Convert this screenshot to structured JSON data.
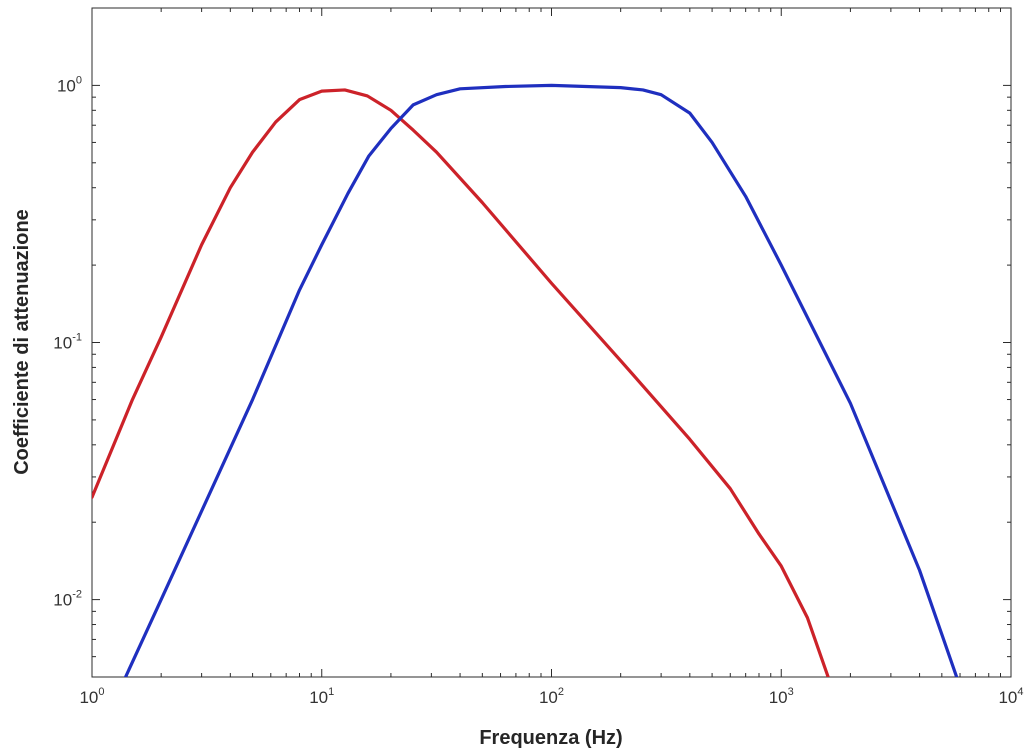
{
  "chart_data": {
    "type": "line",
    "title": "",
    "xlabel": "Frequenza (Hz)",
    "ylabel": "Coefficiente di attenuazione",
    "xscale": "log",
    "yscale": "log",
    "xlim": [
      1,
      10000
    ],
    "ylim": [
      0.005,
      2
    ],
    "grid": false,
    "legend": "none",
    "x_ticks": [
      {
        "value": 1,
        "base": "10",
        "exp": "0"
      },
      {
        "value": 10,
        "base": "10",
        "exp": "1"
      },
      {
        "value": 100,
        "base": "10",
        "exp": "2"
      },
      {
        "value": 1000,
        "base": "10",
        "exp": "3"
      },
      {
        "value": 10000,
        "base": "10",
        "exp": "4"
      }
    ],
    "y_ticks": [
      {
        "value": 0.01,
        "base": "10",
        "exp": "-2"
      },
      {
        "value": 0.1,
        "base": "10",
        "exp": "-1"
      },
      {
        "value": 1,
        "base": "10",
        "exp": "0"
      }
    ],
    "series": [
      {
        "color": "#cc2229",
        "points": [
          [
            1,
            0.025
          ],
          [
            1.5,
            0.06
          ],
          [
            2,
            0.105
          ],
          [
            3,
            0.24
          ],
          [
            4,
            0.4
          ],
          [
            5,
            0.55
          ],
          [
            6.3,
            0.72
          ],
          [
            8,
            0.88
          ],
          [
            10,
            0.95
          ],
          [
            12.6,
            0.96
          ],
          [
            15.8,
            0.91
          ],
          [
            20,
            0.8
          ],
          [
            25,
            0.67
          ],
          [
            31.6,
            0.55
          ],
          [
            50,
            0.35
          ],
          [
            100,
            0.17
          ],
          [
            200,
            0.085
          ],
          [
            400,
            0.042
          ],
          [
            600,
            0.027
          ],
          [
            800,
            0.018
          ],
          [
            1000,
            0.0135
          ],
          [
            1300,
            0.0085
          ],
          [
            1600,
            0.005
          ]
        ]
      },
      {
        "color": "#1f2fbf",
        "points": [
          [
            1.4,
            0.005
          ],
          [
            2,
            0.01
          ],
          [
            5,
            0.06
          ],
          [
            8,
            0.16
          ],
          [
            10,
            0.24
          ],
          [
            13,
            0.38
          ],
          [
            16,
            0.53
          ],
          [
            20,
            0.68
          ],
          [
            25,
            0.84
          ],
          [
            31.6,
            0.92
          ],
          [
            40,
            0.97
          ],
          [
            63,
            0.99
          ],
          [
            100,
            1.0
          ],
          [
            200,
            0.98
          ],
          [
            250,
            0.96
          ],
          [
            300,
            0.92
          ],
          [
            400,
            0.78
          ],
          [
            500,
            0.6
          ],
          [
            700,
            0.37
          ],
          [
            1000,
            0.2
          ],
          [
            2000,
            0.058
          ],
          [
            4000,
            0.013
          ],
          [
            5800,
            0.005
          ]
        ]
      }
    ]
  }
}
